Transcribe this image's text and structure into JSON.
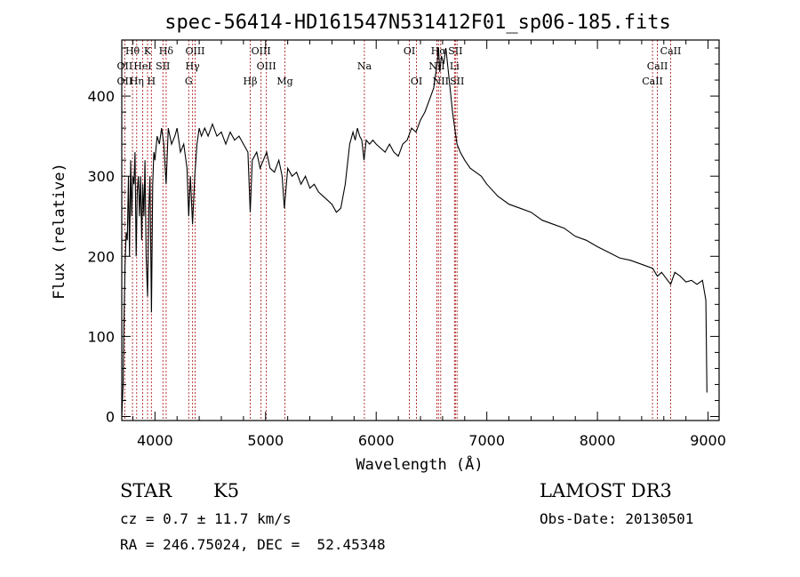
{
  "chart_data": {
    "type": "line",
    "title": "spec-56414-HD161547N531412F01_sp06-185.fits",
    "xlabel": "Wavelength (Å)",
    "ylabel": "Flux (relative)",
    "xlim": [
      3700,
      9100
    ],
    "ylim": [
      -5,
      470
    ],
    "xticks": [
      4000,
      5000,
      6000,
      7000,
      8000,
      9000
    ],
    "yticks": [
      0,
      100,
      200,
      300,
      400
    ],
    "series": [
      {
        "name": "spectrum",
        "points": [
          [
            3700,
            0
          ],
          [
            3712,
            40
          ],
          [
            3720,
            120
          ],
          [
            3730,
            190
          ],
          [
            3740,
            230
          ],
          [
            3750,
            220
          ],
          [
            3760,
            300
          ],
          [
            3770,
            200
          ],
          [
            3780,
            320
          ],
          [
            3790,
            250
          ],
          [
            3800,
            300
          ],
          [
            3810,
            290
          ],
          [
            3820,
            330
          ],
          [
            3830,
            200
          ],
          [
            3840,
            280
          ],
          [
            3850,
            300
          ],
          [
            3860,
            250
          ],
          [
            3870,
            300
          ],
          [
            3880,
            220
          ],
          [
            3890,
            290
          ],
          [
            3900,
            250
          ],
          [
            3910,
            320
          ],
          [
            3920,
            200
          ],
          [
            3933,
            150
          ],
          [
            3945,
            260
          ],
          [
            3955,
            300
          ],
          [
            3968,
            130
          ],
          [
            3980,
            290
          ],
          [
            3990,
            330
          ],
          [
            4000,
            320
          ],
          [
            4020,
            350
          ],
          [
            4040,
            340
          ],
          [
            4060,
            360
          ],
          [
            4080,
            340
          ],
          [
            4101,
            290
          ],
          [
            4120,
            360
          ],
          [
            4150,
            340
          ],
          [
            4180,
            350
          ],
          [
            4200,
            360
          ],
          [
            4230,
            330
          ],
          [
            4260,
            340
          ],
          [
            4290,
            310
          ],
          [
            4305,
            250
          ],
          [
            4320,
            300
          ],
          [
            4340,
            240
          ],
          [
            4360,
            300
          ],
          [
            4380,
            340
          ],
          [
            4400,
            360
          ],
          [
            4420,
            350
          ],
          [
            4450,
            360
          ],
          [
            4480,
            350
          ],
          [
            4520,
            365
          ],
          [
            4560,
            350
          ],
          [
            4600,
            355
          ],
          [
            4640,
            340
          ],
          [
            4680,
            355
          ],
          [
            4720,
            345
          ],
          [
            4760,
            350
          ],
          [
            4800,
            340
          ],
          [
            4840,
            330
          ],
          [
            4861,
            255
          ],
          [
            4880,
            320
          ],
          [
            4920,
            330
          ],
          [
            4950,
            310
          ],
          [
            4980,
            320
          ],
          [
            5010,
            330
          ],
          [
            5040,
            310
          ],
          [
            5080,
            305
          ],
          [
            5120,
            320
          ],
          [
            5150,
            300
          ],
          [
            5170,
            260
          ],
          [
            5200,
            310
          ],
          [
            5240,
            300
          ],
          [
            5280,
            305
          ],
          [
            5320,
            290
          ],
          [
            5360,
            300
          ],
          [
            5400,
            285
          ],
          [
            5440,
            290
          ],
          [
            5480,
            280
          ],
          [
            5520,
            275
          ],
          [
            5560,
            270
          ],
          [
            5600,
            265
          ],
          [
            5640,
            255
          ],
          [
            5680,
            260
          ],
          [
            5720,
            290
          ],
          [
            5760,
            340
          ],
          [
            5790,
            355
          ],
          [
            5810,
            345
          ],
          [
            5830,
            360
          ],
          [
            5850,
            350
          ],
          [
            5870,
            345
          ],
          [
            5890,
            320
          ],
          [
            5910,
            345
          ],
          [
            5940,
            340
          ],
          [
            5970,
            345
          ],
          [
            6000,
            340
          ],
          [
            6040,
            335
          ],
          [
            6080,
            330
          ],
          [
            6120,
            340
          ],
          [
            6160,
            330
          ],
          [
            6200,
            325
          ],
          [
            6240,
            340
          ],
          [
            6280,
            345
          ],
          [
            6320,
            360
          ],
          [
            6360,
            355
          ],
          [
            6400,
            370
          ],
          [
            6440,
            380
          ],
          [
            6480,
            395
          ],
          [
            6520,
            410
          ],
          [
            6550,
            440
          ],
          [
            6563,
            460
          ],
          [
            6575,
            430
          ],
          [
            6590,
            450
          ],
          [
            6610,
            440
          ],
          [
            6630,
            460
          ],
          [
            6660,
            420
          ],
          [
            6690,
            380
          ],
          [
            6710,
            360
          ],
          [
            6730,
            340
          ],
          [
            6760,
            330
          ],
          [
            6800,
            320
          ],
          [
            6850,
            310
          ],
          [
            6900,
            305
          ],
          [
            6950,
            300
          ],
          [
            7000,
            290
          ],
          [
            7100,
            275
          ],
          [
            7200,
            265
          ],
          [
            7300,
            260
          ],
          [
            7400,
            255
          ],
          [
            7500,
            245
          ],
          [
            7600,
            240
          ],
          [
            7700,
            235
          ],
          [
            7800,
            225
          ],
          [
            7900,
            220
          ],
          [
            8000,
            212
          ],
          [
            8100,
            205
          ],
          [
            8200,
            198
          ],
          [
            8300,
            195
          ],
          [
            8400,
            190
          ],
          [
            8500,
            185
          ],
          [
            8542,
            175
          ],
          [
            8580,
            180
          ],
          [
            8662,
            165
          ],
          [
            8700,
            180
          ],
          [
            8750,
            175
          ],
          [
            8800,
            168
          ],
          [
            8850,
            170
          ],
          [
            8900,
            165
          ],
          [
            8950,
            170
          ],
          [
            8980,
            145
          ],
          [
            8990,
            30
          ]
        ]
      }
    ],
    "lines_top": [
      {
        "label": "Hδ",
        "x": 4101,
        "row": 0
      },
      {
        "label": "K",
        "x": 3933,
        "row": 0
      },
      {
        "label": "Hθ",
        "x": 3797,
        "row": 0
      },
      {
        "label": "OIII",
        "x": 4363,
        "row": 0
      },
      {
        "label": "OIII",
        "x": 4959,
        "row": 0
      },
      {
        "label": "OI",
        "x": 6300,
        "row": 0
      },
      {
        "label": "Hα",
        "x": 6563,
        "row": 0
      },
      {
        "label": "SII",
        "x": 6716,
        "row": 0
      },
      {
        "label": "CaII",
        "x": 8662,
        "row": 0
      },
      {
        "label": "OII",
        "x": 3727,
        "row": 1
      },
      {
        "label": "HeI",
        "x": 3889,
        "row": 1
      },
      {
        "label": "SII",
        "x": 4072,
        "row": 1
      },
      {
        "label": "Hγ",
        "x": 4340,
        "row": 1
      },
      {
        "label": "OIII",
        "x": 5007,
        "row": 1
      },
      {
        "label": "Na",
        "x": 5893,
        "row": 1
      },
      {
        "label": "NII",
        "x": 6548,
        "row": 1
      },
      {
        "label": "Li",
        "x": 6708,
        "row": 1
      },
      {
        "label": "CaII",
        "x": 8542,
        "row": 1
      },
      {
        "label": "OII",
        "x": 3727,
        "row": 2
      },
      {
        "label": "Hη",
        "x": 3835,
        "row": 2
      },
      {
        "label": "H",
        "x": 3968,
        "row": 2
      },
      {
        "label": "G",
        "x": 4305,
        "row": 2
      },
      {
        "label": "Hβ",
        "x": 4861,
        "row": 2
      },
      {
        "label": "Mg",
        "x": 5175,
        "row": 2
      },
      {
        "label": "OI",
        "x": 6364,
        "row": 2
      },
      {
        "label": "NII",
        "x": 6583,
        "row": 2
      },
      {
        "label": "SII",
        "x": 6731,
        "row": 2
      },
      {
        "label": "CaII",
        "x": 8498,
        "row": 2
      }
    ]
  },
  "info": {
    "class_label": "STAR",
    "subclass": "K5",
    "survey": "LAMOST DR3",
    "cz": "cz = 0.7 ± 11.7 km/s",
    "obs_date": "Obs-Date: 20130501",
    "coords": "RA = 246.75024, DEC =  52.45348"
  },
  "colors": {
    "line_marker": "#b22222",
    "spectrum": "#000000"
  }
}
